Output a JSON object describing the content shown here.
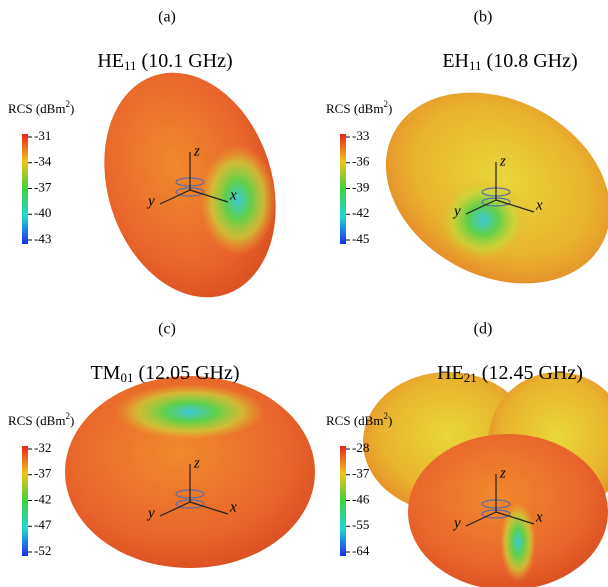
{
  "panels": [
    {
      "label": "(a)",
      "mode": "HE",
      "mode_sub": "11",
      "freq": "(10.1 GHz)",
      "cb_title": "RCS (dBm",
      "cb_sup": "2",
      "cb_close": ")",
      "ticks": [
        "-31",
        "-34",
        "-37",
        "-40",
        "-43"
      ]
    },
    {
      "label": "(b)",
      "mode": "EH",
      "mode_sub": "11",
      "freq": "(10.8 GHz)",
      "cb_title": "RCS (dBm",
      "cb_sup": "2",
      "cb_close": ")",
      "ticks": [
        "-33",
        "-36",
        "-39",
        "-42",
        "-45"
      ]
    },
    {
      "label": "(c)",
      "mode": "TM",
      "mode_sub": "01",
      "freq": "(12.05 GHz)",
      "cb_title": "RCS (dBm",
      "cb_sup": "2",
      "cb_close": ")",
      "ticks": [
        "-32",
        "-37",
        "-42",
        "-47",
        "-52"
      ]
    },
    {
      "label": "(d)",
      "mode": "HE",
      "mode_sub": "21",
      "freq": "(12.45 GHz)",
      "cb_title": "RCS (dBm",
      "cb_sup": "2",
      "cb_close": ")",
      "ticks": [
        "-28",
        "-37",
        "-46",
        "-55",
        "-64"
      ]
    }
  ],
  "axis_labels": {
    "x": "x",
    "y": "y",
    "z": "z"
  }
}
